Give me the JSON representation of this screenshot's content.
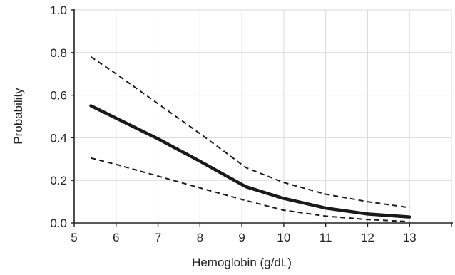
{
  "chart_data": {
    "type": "line",
    "title": "",
    "xlabel": "Hemoglobin (g/dL)",
    "ylabel": "Probability",
    "xlim": [
      5,
      14
    ],
    "ylim": [
      0.0,
      1.0
    ],
    "x_ticks": [
      "5",
      "6",
      "7",
      "8",
      "9",
      "10",
      "11",
      "12",
      "13"
    ],
    "y_ticks": [
      "0.0",
      "0.2",
      "0.4",
      "0.6",
      "0.8",
      "1.0"
    ],
    "grid": true,
    "legend": "none",
    "series": [
      {
        "role": "estimate",
        "style": "solid",
        "color": "#1a1a1a",
        "points": [
          [
            5.4,
            0.55
          ],
          [
            7,
            0.395
          ],
          [
            8,
            0.29
          ],
          [
            9.1,
            0.17
          ],
          [
            10,
            0.115
          ],
          [
            11,
            0.07
          ],
          [
            12,
            0.042
          ],
          [
            13,
            0.028
          ]
        ]
      },
      {
        "role": "upper bound",
        "style": "dashed",
        "color": "#1a1a1a",
        "points": [
          [
            5.4,
            0.78
          ],
          [
            6,
            0.7
          ],
          [
            7,
            0.56
          ],
          [
            8,
            0.42
          ],
          [
            9.1,
            0.26
          ],
          [
            10,
            0.19
          ],
          [
            11,
            0.135
          ],
          [
            12,
            0.1
          ],
          [
            13,
            0.072
          ]
        ]
      },
      {
        "role": "lower bound",
        "style": "dashed",
        "color": "#1a1a1a",
        "points": [
          [
            5.4,
            0.305
          ],
          [
            6,
            0.275
          ],
          [
            7,
            0.22
          ],
          [
            8,
            0.165
          ],
          [
            9.1,
            0.105
          ],
          [
            10,
            0.06
          ],
          [
            11,
            0.032
          ],
          [
            12,
            0.016
          ],
          [
            13,
            0.006
          ]
        ]
      }
    ]
  }
}
